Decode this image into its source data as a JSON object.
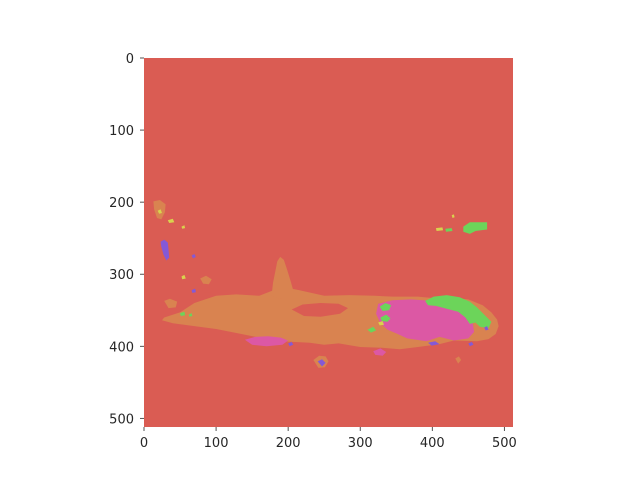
{
  "chart_data": {
    "type": "heatmap",
    "title": "",
    "xlabel": "",
    "ylabel": "",
    "xlim": [
      0,
      512
    ],
    "ylim": [
      512,
      0
    ],
    "y_axis_inverted": true,
    "grid": false,
    "x_ticks": [
      "0",
      "100",
      "200",
      "300",
      "400",
      "500"
    ],
    "y_ticks": [
      "0",
      "100",
      "200",
      "300",
      "400",
      "500"
    ],
    "x_tick_values": [
      0,
      100,
      200,
      300,
      400,
      500
    ],
    "y_tick_values": [
      0,
      100,
      200,
      300,
      400,
      500
    ],
    "colors": {
      "background": "#da5c53",
      "orange": "#d98350",
      "magenta": "#dc58a4",
      "green": "#6cd45a",
      "purple": "#8459d6",
      "yellow": "#d9d24e"
    },
    "regions": [
      {
        "class": "background",
        "color": "background",
        "points": [
          [
            0,
            0
          ],
          [
            512,
            0
          ],
          [
            512,
            512
          ],
          [
            0,
            512
          ]
        ]
      },
      {
        "class": "large-region",
        "color": "orange",
        "points": [
          [
            28,
            360
          ],
          [
            50,
            353
          ],
          [
            70,
            340
          ],
          [
            100,
            330
          ],
          [
            128,
            328
          ],
          [
            160,
            330
          ],
          [
            180,
            322
          ],
          [
            195,
            318
          ],
          [
            215,
            322
          ],
          [
            250,
            330
          ],
          [
            285,
            329
          ],
          [
            320,
            330
          ],
          [
            345,
            331
          ],
          [
            380,
            331
          ],
          [
            400,
            333
          ],
          [
            425,
            333
          ],
          [
            450,
            335
          ],
          [
            470,
            343
          ],
          [
            482,
            353
          ],
          [
            490,
            363
          ],
          [
            492,
            372
          ],
          [
            488,
            383
          ],
          [
            478,
            390
          ],
          [
            462,
            393
          ],
          [
            430,
            392
          ],
          [
            410,
            397
          ],
          [
            380,
            401
          ],
          [
            355,
            404
          ],
          [
            330,
            402
          ],
          [
            300,
            401
          ],
          [
            270,
            396
          ],
          [
            250,
            398
          ],
          [
            230,
            395
          ],
          [
            190,
            393
          ],
          [
            160,
            388
          ],
          [
            130,
            382
          ],
          [
            100,
            376
          ],
          [
            70,
            372
          ],
          [
            40,
            368
          ],
          [
            25,
            364
          ]
        ]
      },
      {
        "class": "large-region",
        "color": "orange",
        "points": [
          [
            177,
            330
          ],
          [
            179,
            312
          ],
          [
            182,
            297
          ],
          [
            185,
            282
          ],
          [
            189,
            276
          ],
          [
            194,
            280
          ],
          [
            198,
            292
          ],
          [
            203,
            308
          ],
          [
            207,
            322
          ],
          [
            200,
            330
          ],
          [
            189,
            334
          ]
        ]
      },
      {
        "class": "large-region",
        "color": "orange",
        "points": [
          [
            28,
            337
          ],
          [
            36,
            334
          ],
          [
            46,
            338
          ],
          [
            44,
            346
          ],
          [
            34,
            347
          ]
        ]
      },
      {
        "class": "large-region",
        "color": "orange",
        "points": [
          [
            78,
            306
          ],
          [
            86,
            302
          ],
          [
            94,
            307
          ],
          [
            90,
            314
          ],
          [
            82,
            313
          ]
        ]
      },
      {
        "class": "large-region",
        "color": "orange",
        "points": [
          [
            13,
            199
          ],
          [
            22,
            197
          ],
          [
            30,
            203
          ],
          [
            29,
            214
          ],
          [
            24,
            224
          ],
          [
            18,
            222
          ],
          [
            14,
            210
          ]
        ]
      },
      {
        "class": "large-region",
        "color": "orange",
        "points": [
          [
            235,
            419
          ],
          [
            243,
            413
          ],
          [
            252,
            414
          ],
          [
            256,
            421
          ],
          [
            251,
            429
          ],
          [
            242,
            430
          ]
        ]
      },
      {
        "class": "large-region",
        "color": "orange",
        "points": [
          [
            432,
            417
          ],
          [
            437,
            414
          ],
          [
            440,
            419
          ],
          [
            436,
            424
          ]
        ]
      },
      {
        "class": "background-hole",
        "color": "background",
        "points": [
          [
            205,
            349
          ],
          [
            220,
            342
          ],
          [
            245,
            340
          ],
          [
            270,
            341
          ],
          [
            283,
            347
          ],
          [
            272,
            355
          ],
          [
            245,
            359
          ],
          [
            222,
            358
          ]
        ]
      },
      {
        "class": "background-hole",
        "color": "background",
        "points": [
          [
            80,
            320
          ],
          [
            92,
            318
          ],
          [
            96,
            323
          ],
          [
            90,
            326
          ],
          [
            82,
            325
          ]
        ]
      },
      {
        "class": "overlay-region",
        "color": "magenta",
        "points": [
          [
            325,
            341
          ],
          [
            345,
            336
          ],
          [
            370,
            335
          ],
          [
            400,
            337
          ],
          [
            422,
            341
          ],
          [
            437,
            347
          ],
          [
            448,
            356
          ],
          [
            456,
            367
          ],
          [
            458,
            380
          ],
          [
            450,
            389
          ],
          [
            430,
            392
          ],
          [
            410,
            387
          ],
          [
            392,
            393
          ],
          [
            365,
            389
          ],
          [
            352,
            383
          ],
          [
            338,
            377
          ],
          [
            328,
            368
          ],
          [
            322,
            355
          ]
        ]
      },
      {
        "class": "overlay-region",
        "color": "magenta",
        "points": [
          [
            140,
            391
          ],
          [
            154,
            387
          ],
          [
            172,
            386
          ],
          [
            190,
            388
          ],
          [
            200,
            392
          ],
          [
            192,
            398
          ],
          [
            170,
            400
          ],
          [
            150,
            398
          ]
        ]
      },
      {
        "class": "overlay-region",
        "color": "magenta",
        "points": [
          [
            318,
            407
          ],
          [
            328,
            403
          ],
          [
            336,
            408
          ],
          [
            331,
            413
          ],
          [
            321,
            412
          ]
        ]
      },
      {
        "class": "overlay-region",
        "color": "green",
        "points": [
          [
            390,
            337
          ],
          [
            402,
            331
          ],
          [
            420,
            329
          ],
          [
            438,
            332
          ],
          [
            452,
            338
          ],
          [
            462,
            346
          ],
          [
            472,
            356
          ],
          [
            482,
            366
          ],
          [
            478,
            375
          ],
          [
            466,
            373
          ],
          [
            460,
            367
          ],
          [
            452,
            369
          ],
          [
            446,
            360
          ],
          [
            436,
            352
          ],
          [
            420,
            348
          ],
          [
            405,
            344
          ],
          [
            394,
            343
          ]
        ]
      },
      {
        "class": "overlay-region",
        "color": "green",
        "points": [
          [
            327,
            345
          ],
          [
            335,
            340
          ],
          [
            343,
            343
          ],
          [
            340,
            350
          ],
          [
            331,
            351
          ]
        ]
      },
      {
        "class": "overlay-region",
        "color": "green",
        "points": [
          [
            328,
            360
          ],
          [
            336,
            356
          ],
          [
            342,
            361
          ],
          [
            338,
            366
          ],
          [
            330,
            365
          ]
        ]
      },
      {
        "class": "overlay-region",
        "color": "green",
        "points": [
          [
            310,
            377
          ],
          [
            318,
            373
          ],
          [
            322,
            378
          ],
          [
            315,
            381
          ]
        ]
      },
      {
        "class": "overlay-region",
        "color": "green",
        "points": [
          [
            443,
            234
          ],
          [
            452,
            228
          ],
          [
            476,
            228
          ],
          [
            476,
            238
          ],
          [
            460,
            240
          ],
          [
            452,
            244
          ],
          [
            443,
            241
          ]
        ]
      },
      {
        "class": "overlay-region",
        "color": "green",
        "points": [
          [
            418,
            237
          ],
          [
            427,
            236
          ],
          [
            428,
            240
          ],
          [
            419,
            241
          ]
        ]
      },
      {
        "class": "overlay-region",
        "color": "green",
        "points": [
          [
            50,
            354
          ],
          [
            56,
            352
          ],
          [
            57,
            357
          ],
          [
            51,
            358
          ]
        ]
      },
      {
        "class": "overlay-region",
        "color": "green",
        "points": [
          [
            62,
            356
          ],
          [
            66,
            354
          ],
          [
            67,
            358
          ],
          [
            63,
            359
          ]
        ]
      },
      {
        "class": "minor-region",
        "color": "purple",
        "points": [
          [
            23,
            255
          ],
          [
            28,
            252
          ],
          [
            33,
            256
          ],
          [
            34,
            265
          ],
          [
            35,
            277
          ],
          [
            31,
            281
          ],
          [
            27,
            273
          ],
          [
            24,
            262
          ]
        ]
      },
      {
        "class": "minor-region",
        "color": "purple",
        "points": [
          [
            241,
            421
          ],
          [
            247,
            418
          ],
          [
            252,
            423
          ],
          [
            247,
            428
          ]
        ]
      },
      {
        "class": "minor-region",
        "color": "purple",
        "points": [
          [
            66,
            274
          ],
          [
            70,
            272
          ],
          [
            72,
            276
          ],
          [
            68,
            278
          ]
        ]
      },
      {
        "class": "minor-region",
        "color": "purple",
        "points": [
          [
            66,
            322
          ],
          [
            71,
            320
          ],
          [
            72,
            325
          ],
          [
            67,
            326
          ]
        ]
      },
      {
        "class": "minor-region",
        "color": "purple",
        "points": [
          [
            394,
            395
          ],
          [
            404,
            393
          ],
          [
            410,
            397
          ],
          [
            399,
            399
          ]
        ]
      },
      {
        "class": "minor-region",
        "color": "purple",
        "points": [
          [
            450,
            396
          ],
          [
            455,
            394
          ],
          [
            457,
            398
          ],
          [
            452,
            400
          ]
        ]
      },
      {
        "class": "minor-region",
        "color": "purple",
        "points": [
          [
            472,
            374
          ],
          [
            476,
            372
          ],
          [
            478,
            377
          ],
          [
            474,
            378
          ]
        ]
      },
      {
        "class": "minor-region",
        "color": "purple",
        "points": [
          [
            200,
            396
          ],
          [
            205,
            394
          ],
          [
            207,
            398
          ],
          [
            202,
            400
          ]
        ]
      },
      {
        "class": "minor-region",
        "color": "yellow",
        "points": [
          [
            19,
            212
          ],
          [
            23,
            210
          ],
          [
            25,
            215
          ],
          [
            21,
            216
          ]
        ]
      },
      {
        "class": "minor-region",
        "color": "yellow",
        "points": [
          [
            33,
            225
          ],
          [
            40,
            223
          ],
          [
            42,
            228
          ],
          [
            35,
            229
          ]
        ]
      },
      {
        "class": "minor-region",
        "color": "yellow",
        "points": [
          [
            52,
            234
          ],
          [
            56,
            232
          ],
          [
            57,
            236
          ],
          [
            53,
            237
          ]
        ]
      },
      {
        "class": "minor-region",
        "color": "yellow",
        "points": [
          [
            405,
            236
          ],
          [
            414,
            235
          ],
          [
            415,
            239
          ],
          [
            406,
            240
          ]
        ]
      },
      {
        "class": "minor-region",
        "color": "yellow",
        "points": [
          [
            427,
            218
          ],
          [
            430,
            217
          ],
          [
            431,
            221
          ],
          [
            428,
            222
          ]
        ]
      },
      {
        "class": "minor-region",
        "color": "yellow",
        "points": [
          [
            52,
            303
          ],
          [
            56,
            301
          ],
          [
            58,
            306
          ],
          [
            53,
            307
          ]
        ]
      },
      {
        "class": "minor-region",
        "color": "yellow",
        "points": [
          [
            325,
            367
          ],
          [
            331,
            365
          ],
          [
            333,
            370
          ],
          [
            327,
            371
          ]
        ]
      }
    ]
  }
}
